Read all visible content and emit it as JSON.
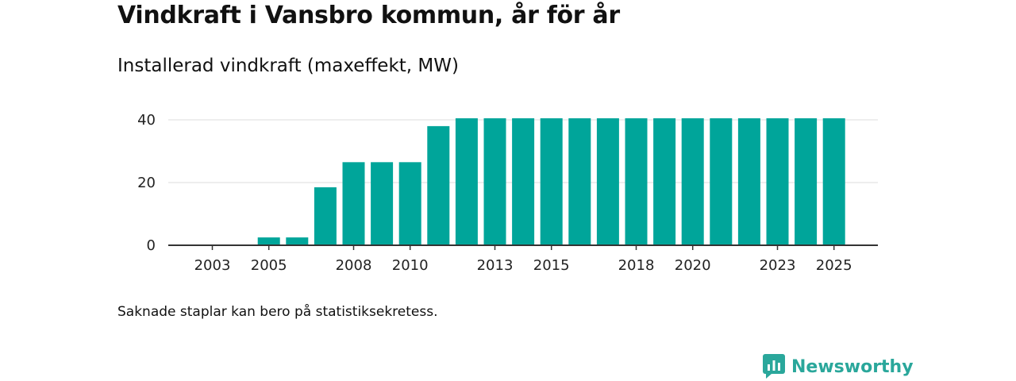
{
  "title": "Vindkraft i Vansbro kommun, år för år",
  "subtitle": "Installerad vindkraft (maxeffekt, MW)",
  "note": "Saknade staplar kan bero på statistiksekretess.",
  "brand": {
    "name": "Newsworthy",
    "icon": "newsworthy-logo-icon",
    "color": "#2aa79b"
  },
  "colors": {
    "bar": "#00a59a",
    "grid": "#dddddd",
    "axis": "#333333"
  },
  "chart_data": {
    "type": "bar",
    "title": "Vindkraft i Vansbro kommun, år för år",
    "ylabel": "Installerad vindkraft (maxeffekt, MW)",
    "xlabel": "",
    "x": [
      2002,
      2003,
      2004,
      2005,
      2006,
      2007,
      2008,
      2009,
      2010,
      2011,
      2012,
      2013,
      2014,
      2015,
      2016,
      2017,
      2018,
      2019,
      2020,
      2021,
      2022,
      2023,
      2024,
      2025
    ],
    "values": [
      0,
      0,
      0,
      2.5,
      2.5,
      18.5,
      26.5,
      26.5,
      26.5,
      38,
      40.5,
      40.5,
      40.5,
      40.5,
      40.5,
      40.5,
      40.5,
      40.5,
      40.5,
      40.5,
      40.5,
      40.5,
      40.5,
      40.5
    ],
    "ylim": [
      0,
      40
    ],
    "yticks": [
      0,
      20,
      40
    ],
    "xtick_labels": [
      "2003",
      "2005",
      "2008",
      "2010",
      "2013",
      "2015",
      "2018",
      "2020",
      "2023",
      "2025"
    ],
    "grid": true,
    "legend": "none"
  }
}
